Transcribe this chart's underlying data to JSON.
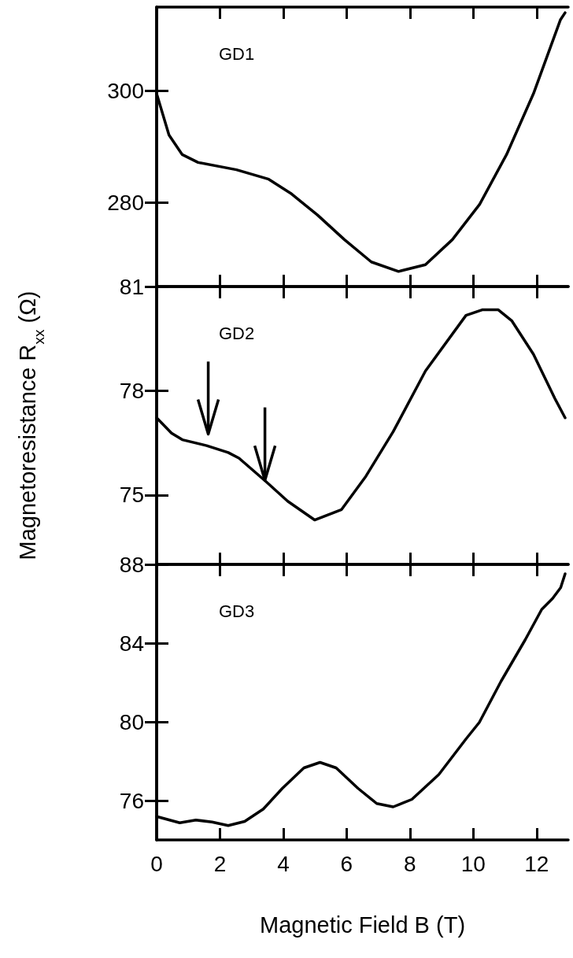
{
  "chart_data": [
    {
      "type": "line",
      "annotations": [
        "GD1"
      ],
      "color": "#000000",
      "xlim": [
        0,
        13
      ],
      "xticks": [
        0,
        2,
        4,
        6,
        8,
        10,
        12
      ],
      "ylim": [
        265,
        315
      ],
      "yticks": [
        280,
        300
      ],
      "tick_labels": "y",
      "x": [
        0,
        0.39,
        0.81,
        1.31,
        2.52,
        3.54,
        4.23,
        5.08,
        5.93,
        6.78,
        7.64,
        8.49,
        9.34,
        10.2,
        11.05,
        11.9,
        12.75,
        12.9
      ],
      "values": [
        299.5,
        292.1,
        288.6,
        287.2,
        285.9,
        284.2,
        281.7,
        277.8,
        273.4,
        269.4,
        267.7,
        268.9,
        273.4,
        279.7,
        288.6,
        299.5,
        312.7,
        314
      ]
    },
    {
      "type": "line",
      "annotations": [
        "GD2"
      ],
      "ylabel": "Magnetoresistance R$_{xx}$ (Ω)",
      "color": "#000000",
      "xlim": [
        0,
        13
      ],
      "xticks": [
        0,
        2,
        4,
        6,
        8,
        10,
        12
      ],
      "ylim": [
        73,
        81
      ],
      "yticks": [
        75,
        78,
        81
      ],
      "tick_labels": "y",
      "x": [
        0,
        0.47,
        0.81,
        1.58,
        2.26,
        2.6,
        3.46,
        4.14,
        4.99,
        5.84,
        6.61,
        7.47,
        8.49,
        9.77,
        10.28,
        10.79,
        11.22,
        11.9,
        12.58,
        12.9
      ],
      "values": [
        77.22,
        76.78,
        76.59,
        76.42,
        76.22,
        76.06,
        75.38,
        74.82,
        74.28,
        74.58,
        75.54,
        76.82,
        78.57,
        80.17,
        80.33,
        80.33,
        80.01,
        79.05,
        77.77,
        77.22
      ]
    },
    {
      "type": "line",
      "annotations": [
        "GD3"
      ],
      "xlabel": "Magnetic Field B (T)",
      "color": "#000000",
      "xlim": [
        0,
        13
      ],
      "xticks": [
        0,
        2,
        4,
        6,
        8,
        10,
        12
      ],
      "ylim": [
        74,
        88
      ],
      "yticks": [
        76,
        80,
        84,
        88
      ],
      "x": [
        0,
        0.73,
        1.24,
        1.75,
        2.26,
        2.78,
        3.37,
        3.97,
        4.65,
        5.16,
        5.67,
        6.36,
        6.95,
        7.47,
        8.06,
        8.91,
        9.77,
        10.19,
        10.88,
        11.64,
        12.16,
        12.5,
        12.76,
        12.9
      ],
      "values": [
        75.19,
        74.87,
        75.01,
        74.91,
        74.73,
        74.94,
        75.57,
        76.62,
        77.66,
        77.94,
        77.66,
        76.62,
        75.85,
        75.68,
        76.06,
        77.32,
        79.13,
        79.97,
        82.07,
        84.17,
        85.71,
        86.26,
        86.82,
        87.52
      ]
    }
  ]
}
